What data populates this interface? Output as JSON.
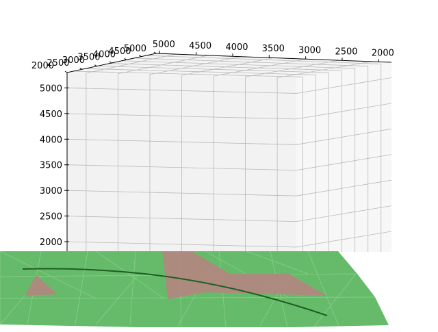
{
  "chart_data": {
    "type": "surface",
    "projection": "3d",
    "axis_top_front": {
      "ticks": [
        5000,
        4500,
        4000,
        3500,
        3000,
        2500,
        2000
      ]
    },
    "axis_top_left": {
      "ticks": [
        5000,
        4500,
        4000,
        3500,
        3000,
        2500,
        2000
      ],
      "tick_labels": [
        "5000",
        "4500",
        "4000",
        "3500",
        "3000",
        "2500",
        "2000"
      ]
    },
    "axis_vertical": {
      "ticks": [
        5000,
        4500,
        4000,
        3500,
        3000,
        2500,
        2000
      ]
    },
    "grid": true,
    "colors": {
      "surface": "#66bb6a",
      "surface_edge": "#8fd08f",
      "patch": "#b08880",
      "curve": "#1f5c23",
      "pane_left": "#f2f2f2",
      "pane_right": "#f7f7f7",
      "pane_top": "#f4f4f4",
      "gridline": "#b8b8b8"
    }
  }
}
